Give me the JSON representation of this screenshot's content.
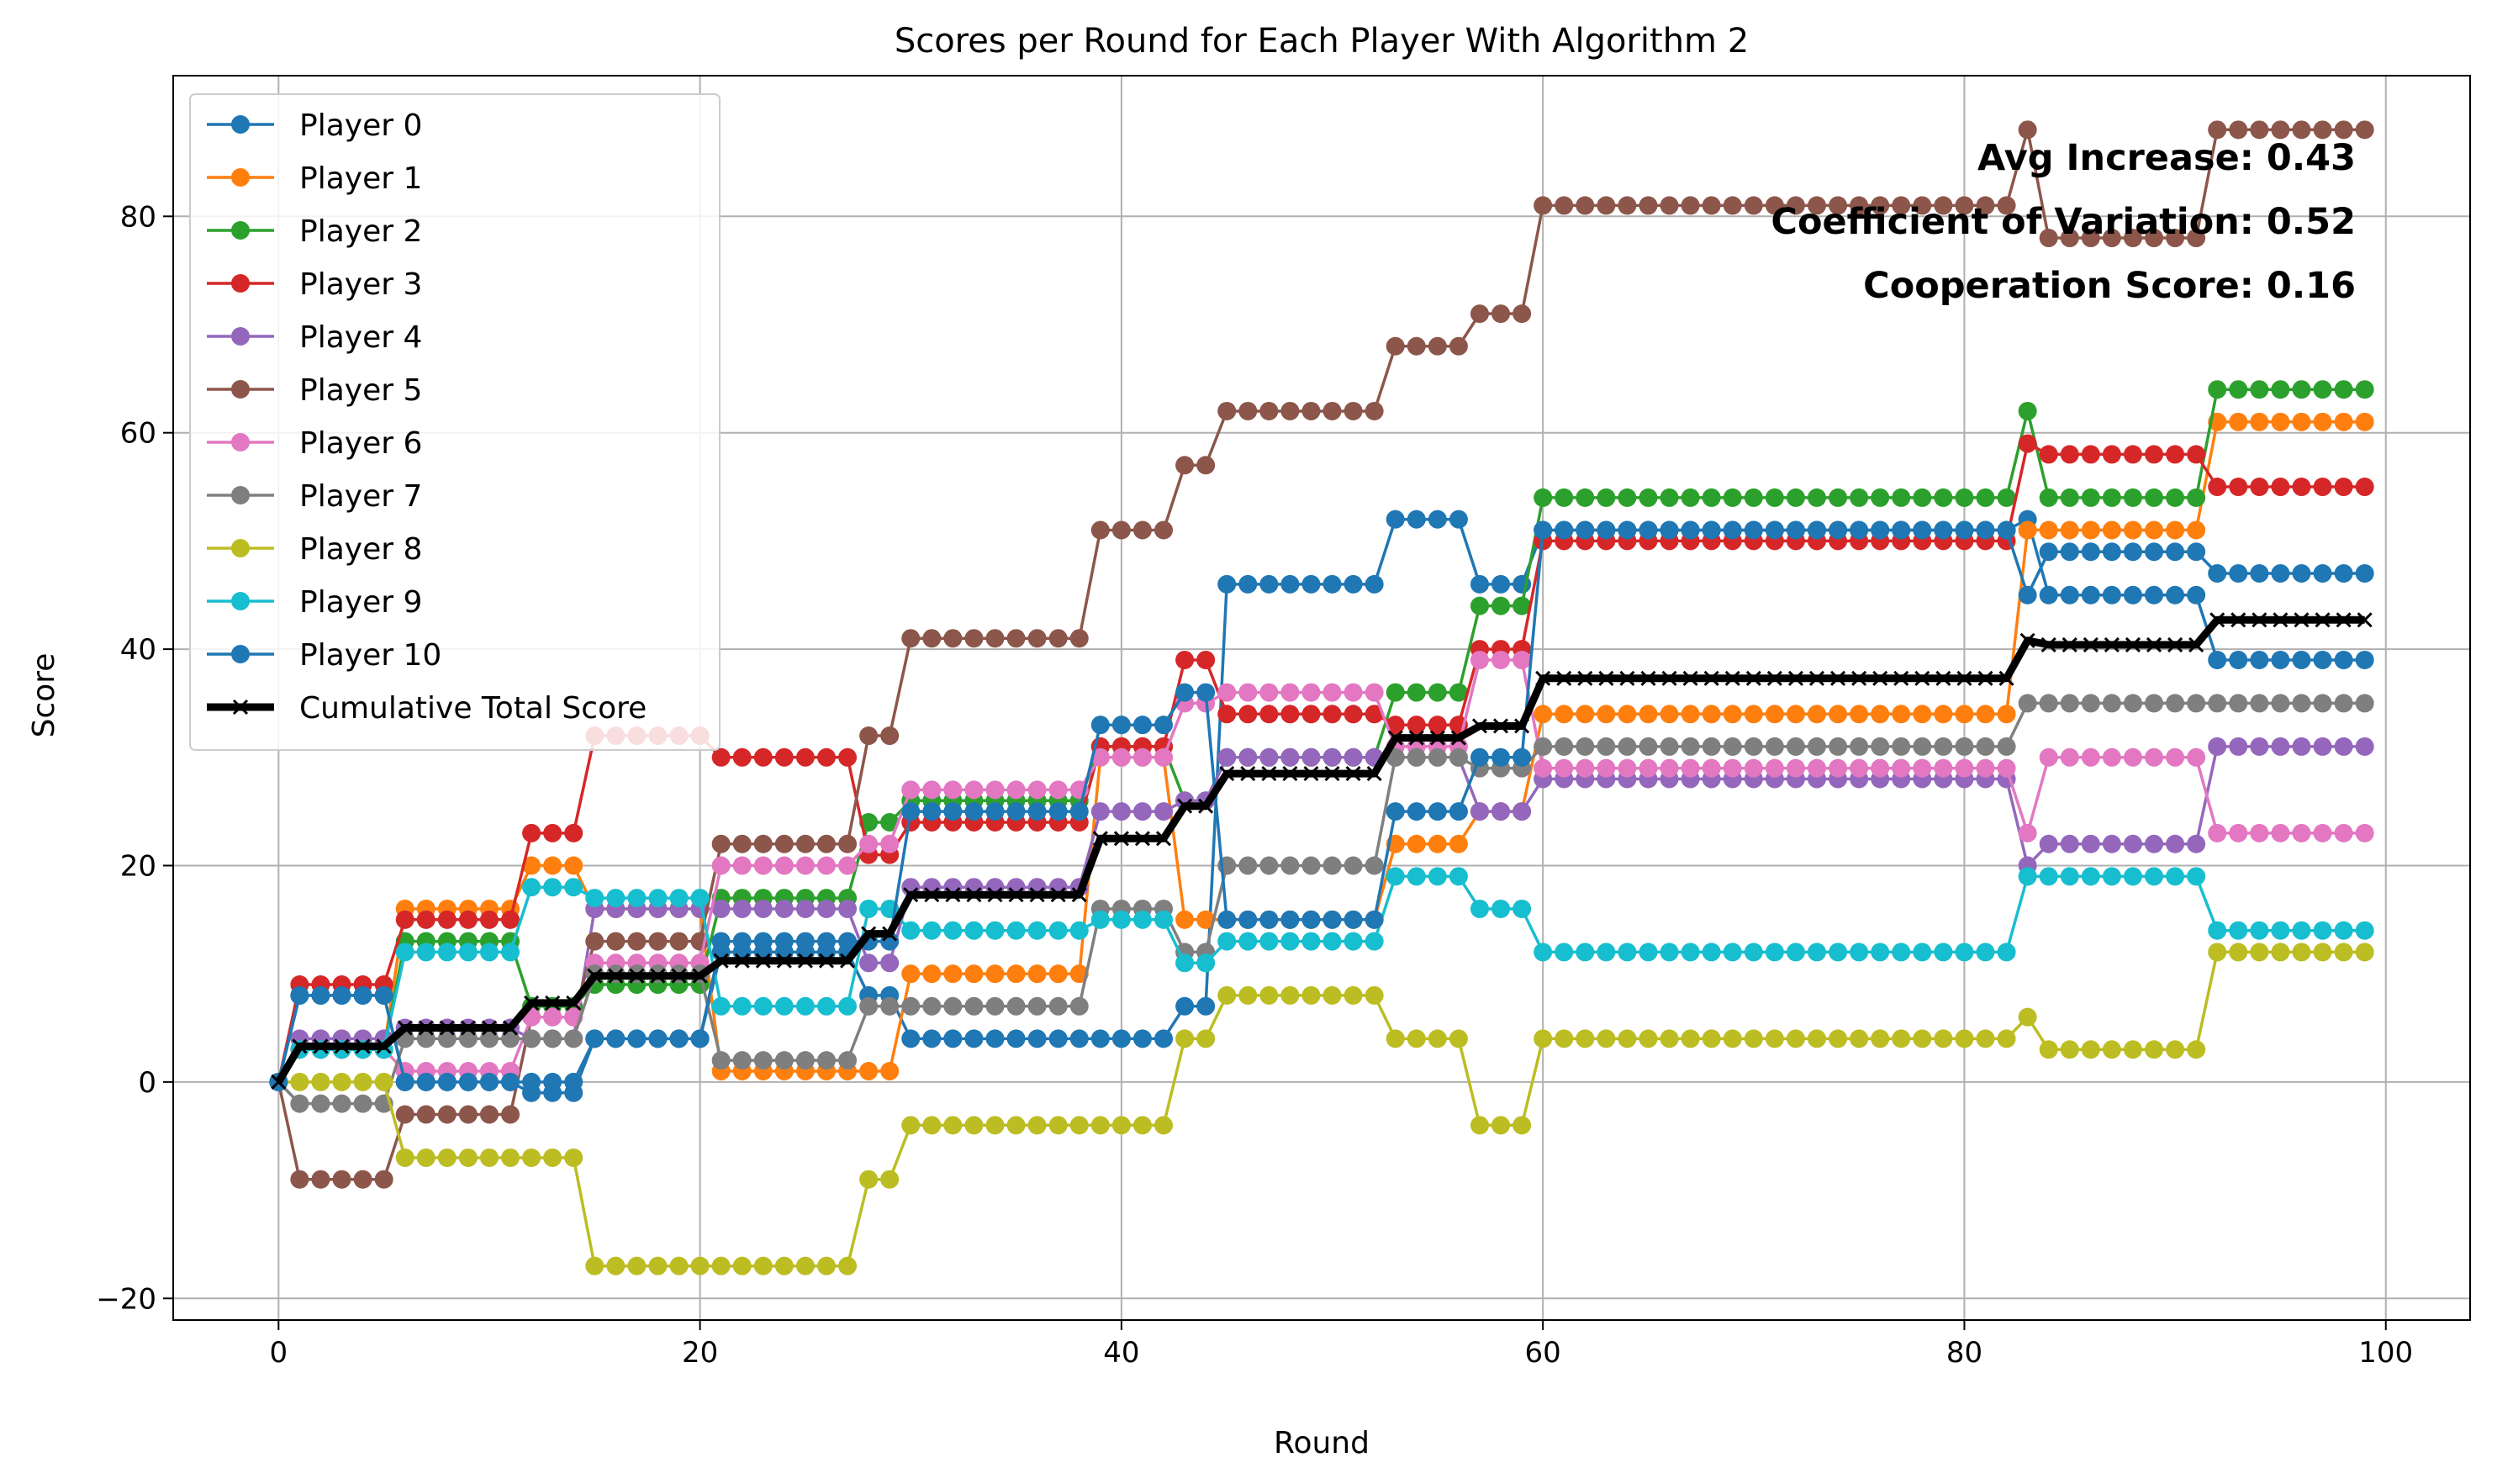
{
  "chart_data": {
    "type": "line",
    "title": "Scores per Round for Each Player With Algorithm 2",
    "xlabel": "Round",
    "ylabel": "Score",
    "xlim": [
      -5,
      104
    ],
    "ylim": [
      -22,
      93
    ],
    "x_ticks": [
      0,
      20,
      40,
      60,
      80,
      100
    ],
    "y_ticks": [
      -20,
      0,
      20,
      40,
      60,
      80
    ],
    "x_tick_labels": [
      "0",
      "20",
      "40",
      "60",
      "80",
      "100"
    ],
    "y_tick_labels": [
      "−20",
      "0",
      "20",
      "40",
      "60",
      "80"
    ],
    "grid": true,
    "legend_position": "upper-left",
    "annotations": [
      "Avg Increase: 0.43",
      "Coefficient of Variation: 0.52",
      "Cooperation Score: 0.16"
    ],
    "series": [
      {
        "name": "Player 0",
        "color": "#1f77b4",
        "marker": "circle",
        "segments": [
          [
            0,
            0
          ],
          [
            1,
            8
          ],
          [
            6,
            0
          ],
          [
            12,
            -1
          ],
          [
            15,
            4
          ],
          [
            21,
            12
          ],
          [
            28,
            8
          ],
          [
            30,
            4
          ],
          [
            39,
            4
          ],
          [
            43,
            7
          ],
          [
            45,
            46
          ],
          [
            53,
            52
          ],
          [
            57,
            46
          ],
          [
            60,
            51
          ],
          [
            83,
            52
          ],
          [
            84,
            45
          ],
          [
            92,
            39
          ],
          [
            99,
            39
          ]
        ]
      },
      {
        "name": "Player 1",
        "color": "#ff7f0e",
        "marker": "circle",
        "segments": [
          [
            0,
            0
          ],
          [
            1,
            3
          ],
          [
            6,
            16
          ],
          [
            12,
            20
          ],
          [
            15,
            16
          ],
          [
            21,
            1
          ],
          [
            30,
            10
          ],
          [
            39,
            30
          ],
          [
            43,
            15
          ],
          [
            45,
            15
          ],
          [
            53,
            22
          ],
          [
            57,
            25
          ],
          [
            60,
            34
          ],
          [
            83,
            51
          ],
          [
            92,
            61
          ],
          [
            99,
            61
          ]
        ]
      },
      {
        "name": "Player 2",
        "color": "#2ca02c",
        "marker": "circle",
        "segments": [
          [
            0,
            0
          ],
          [
            1,
            3
          ],
          [
            6,
            13
          ],
          [
            12,
            7
          ],
          [
            15,
            9
          ],
          [
            21,
            17
          ],
          [
            28,
            24
          ],
          [
            30,
            26
          ],
          [
            39,
            31
          ],
          [
            43,
            26
          ],
          [
            45,
            30
          ],
          [
            53,
            36
          ],
          [
            57,
            44
          ],
          [
            60,
            54
          ],
          [
            83,
            62
          ],
          [
            84,
            54
          ],
          [
            92,
            64
          ],
          [
            99,
            64
          ]
        ]
      },
      {
        "name": "Player 3",
        "color": "#d62728",
        "marker": "circle",
        "segments": [
          [
            0,
            0
          ],
          [
            1,
            9
          ],
          [
            6,
            15
          ],
          [
            12,
            23
          ],
          [
            15,
            32
          ],
          [
            21,
            30
          ],
          [
            28,
            21
          ],
          [
            30,
            24
          ],
          [
            39,
            31
          ],
          [
            43,
            39
          ],
          [
            45,
            34
          ],
          [
            53,
            33
          ],
          [
            57,
            40
          ],
          [
            60,
            50
          ],
          [
            83,
            59
          ],
          [
            84,
            58
          ],
          [
            92,
            55
          ],
          [
            99,
            55
          ]
        ]
      },
      {
        "name": "Player 4",
        "color": "#9467bd",
        "marker": "circle",
        "segments": [
          [
            0,
            0
          ],
          [
            1,
            4
          ],
          [
            6,
            5
          ],
          [
            12,
            4
          ],
          [
            15,
            16
          ],
          [
            21,
            16
          ],
          [
            28,
            11
          ],
          [
            30,
            18
          ],
          [
            39,
            25
          ],
          [
            43,
            26
          ],
          [
            45,
            30
          ],
          [
            53,
            30
          ],
          [
            57,
            25
          ],
          [
            60,
            28
          ],
          [
            83,
            20
          ],
          [
            84,
            22
          ],
          [
            92,
            31
          ],
          [
            99,
            31
          ]
        ]
      },
      {
        "name": "Player 5",
        "color": "#8c564b",
        "marker": "circle",
        "segments": [
          [
            0,
            0
          ],
          [
            1,
            -9
          ],
          [
            6,
            -3
          ],
          [
            12,
            6
          ],
          [
            15,
            13
          ],
          [
            21,
            22
          ],
          [
            28,
            32
          ],
          [
            30,
            41
          ],
          [
            39,
            51
          ],
          [
            43,
            57
          ],
          [
            45,
            62
          ],
          [
            53,
            68
          ],
          [
            57,
            71
          ],
          [
            60,
            81
          ],
          [
            83,
            88
          ],
          [
            84,
            78
          ],
          [
            92,
            88
          ],
          [
            99,
            88
          ]
        ]
      },
      {
        "name": "Player 6",
        "color": "#e377c2",
        "marker": "circle",
        "segments": [
          [
            0,
            0
          ],
          [
            1,
            3
          ],
          [
            6,
            1
          ],
          [
            12,
            6
          ],
          [
            15,
            11
          ],
          [
            21,
            20
          ],
          [
            28,
            22
          ],
          [
            30,
            27
          ],
          [
            39,
            30
          ],
          [
            43,
            35
          ],
          [
            45,
            36
          ],
          [
            53,
            31
          ],
          [
            57,
            39
          ],
          [
            60,
            29
          ],
          [
            83,
            23
          ],
          [
            84,
            30
          ],
          [
            92,
            23
          ],
          [
            99,
            23
          ]
        ]
      },
      {
        "name": "Player 7",
        "color": "#7f7f7f",
        "marker": "circle",
        "segments": [
          [
            0,
            0
          ],
          [
            1,
            -2
          ],
          [
            6,
            4
          ],
          [
            12,
            4
          ],
          [
            15,
            10
          ],
          [
            21,
            2
          ],
          [
            28,
            7
          ],
          [
            30,
            7
          ],
          [
            39,
            16
          ],
          [
            43,
            12
          ],
          [
            45,
            20
          ],
          [
            53,
            30
          ],
          [
            57,
            29
          ],
          [
            60,
            31
          ],
          [
            83,
            35
          ],
          [
            92,
            35
          ],
          [
            99,
            35
          ]
        ]
      },
      {
        "name": "Player 8",
        "color": "#bcbd22",
        "marker": "circle",
        "segments": [
          [
            0,
            0
          ],
          [
            1,
            0
          ],
          [
            6,
            -7
          ],
          [
            12,
            -7
          ],
          [
            15,
            -17
          ],
          [
            21,
            -17
          ],
          [
            28,
            -9
          ],
          [
            30,
            -4
          ],
          [
            39,
            -4
          ],
          [
            43,
            4
          ],
          [
            45,
            8
          ],
          [
            53,
            4
          ],
          [
            57,
            -4
          ],
          [
            60,
            4
          ],
          [
            83,
            6
          ],
          [
            84,
            3
          ],
          [
            92,
            12
          ],
          [
            99,
            12
          ]
        ]
      },
      {
        "name": "Player 9",
        "color": "#17becf",
        "marker": "circle",
        "segments": [
          [
            0,
            0
          ],
          [
            1,
            3
          ],
          [
            6,
            12
          ],
          [
            12,
            18
          ],
          [
            15,
            17
          ],
          [
            21,
            7
          ],
          [
            28,
            16
          ],
          [
            30,
            14
          ],
          [
            39,
            15
          ],
          [
            43,
            11
          ],
          [
            45,
            13
          ],
          [
            53,
            19
          ],
          [
            57,
            16
          ],
          [
            60,
            12
          ],
          [
            83,
            19
          ],
          [
            92,
            14
          ],
          [
            99,
            14
          ]
        ]
      },
      {
        "name": "Player 10",
        "color": "#1f77b4",
        "marker": "circle",
        "segments": [
          [
            0,
            0
          ],
          [
            1,
            8
          ],
          [
            6,
            0
          ],
          [
            12,
            0
          ],
          [
            15,
            4
          ],
          [
            21,
            13
          ],
          [
            28,
            13
          ],
          [
            30,
            25
          ],
          [
            39,
            33
          ],
          [
            43,
            36
          ],
          [
            45,
            15
          ],
          [
            53,
            25
          ],
          [
            57,
            30
          ],
          [
            60,
            51
          ],
          [
            83,
            45
          ],
          [
            84,
            49
          ],
          [
            92,
            47
          ],
          [
            99,
            47
          ]
        ]
      },
      {
        "name": "Cumulative Total Score",
        "color": "#000000",
        "marker": "x",
        "segments": [
          [
            0,
            0
          ],
          [
            1,
            3.3
          ],
          [
            6,
            5
          ],
          [
            12,
            7.3
          ],
          [
            15,
            9.8
          ],
          [
            21,
            11.2
          ],
          [
            28,
            13.7
          ],
          [
            30,
            17.3
          ],
          [
            39,
            22.5
          ],
          [
            43,
            25.5
          ],
          [
            45,
            28.5
          ],
          [
            53,
            31.8
          ],
          [
            57,
            32.9
          ],
          [
            60,
            37.3
          ],
          [
            83,
            40.8
          ],
          [
            84,
            40.4
          ],
          [
            92,
            42.7
          ],
          [
            99,
            42.7
          ]
        ]
      }
    ]
  }
}
